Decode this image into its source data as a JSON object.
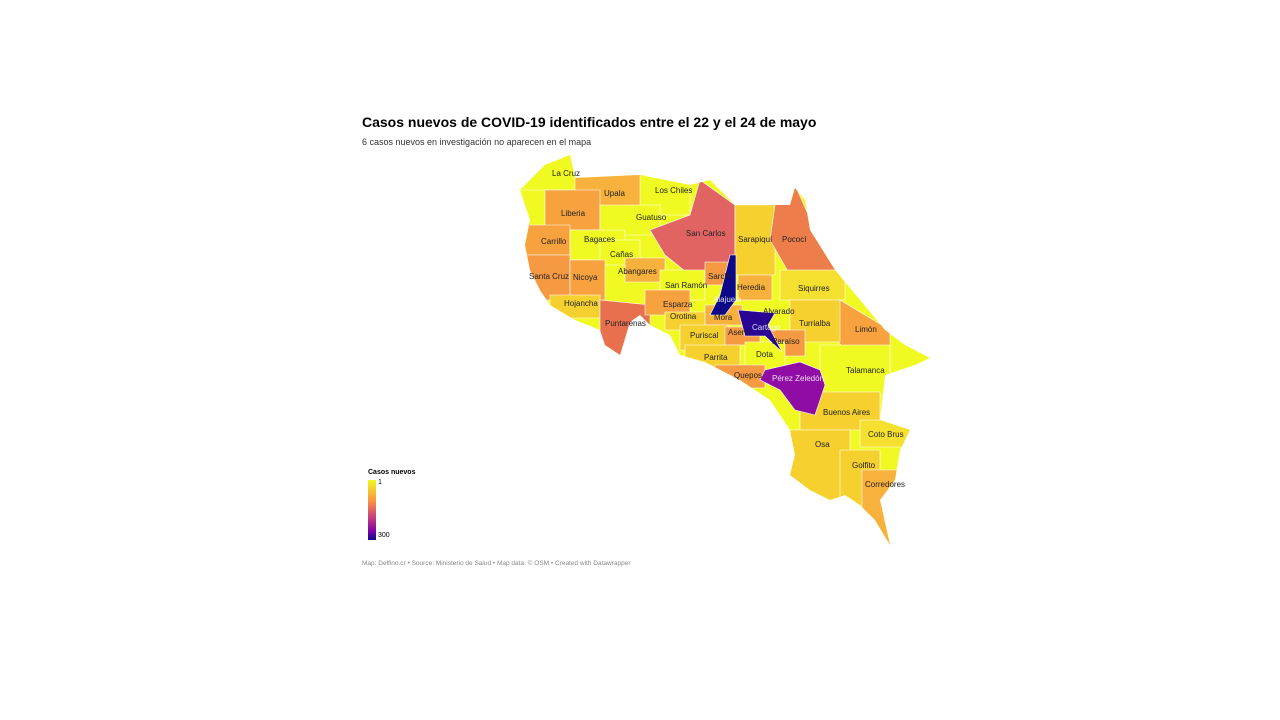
{
  "title": "Casos nuevos de COVID-19 identificados entre el 22 y el 24 de mayo",
  "subtitle": "6 casos nuevos en investigación no aparecen en el mapa",
  "legend": {
    "title": "Casos nuevos",
    "min": "1",
    "max": "300",
    "colors": [
      "#f0f921",
      "#f89540",
      "#cc4778",
      "#7e03a8",
      "#0d0887"
    ]
  },
  "footer": "Map: Delfino.cr • Source: Ministerio de Salud • Map data: © OSM • Created with Datawrapper",
  "regions": [
    {
      "name": "La Cruz",
      "color": "#f0f921"
    },
    {
      "name": "Upala",
      "color": "#f7b13c"
    },
    {
      "name": "Los Chiles",
      "color": "#f0f921"
    },
    {
      "name": "Liberia",
      "color": "#f7a23f"
    },
    {
      "name": "Guatuso",
      "color": "#f0f921"
    },
    {
      "name": "San Carlos",
      "color": "#e16462"
    },
    {
      "name": "Carrillo",
      "color": "#f7a23f"
    },
    {
      "name": "Bagaces",
      "color": "#f0f921"
    },
    {
      "name": "Sarapiquí",
      "color": "#f5d02e"
    },
    {
      "name": "Pococí",
      "color": "#ed7d4a"
    },
    {
      "name": "Cañas",
      "color": "#f0f921"
    },
    {
      "name": "Santa Cruz",
      "color": "#f59a42"
    },
    {
      "name": "Nicoya",
      "color": "#f7a23f"
    },
    {
      "name": "Abangares",
      "color": "#f7b13c"
    },
    {
      "name": "Hojancha",
      "color": "#f5d02e"
    },
    {
      "name": "Puntarenas",
      "color": "#e9704f"
    },
    {
      "name": "San Ramón",
      "color": "#f0f921"
    },
    {
      "name": "Esparza",
      "color": "#f7a23f"
    },
    {
      "name": "Orotina",
      "color": "#f5d02e"
    },
    {
      "name": "Sarchí",
      "color": "#f59a42"
    },
    {
      "name": "Alajuela",
      "color": "#0d0887"
    },
    {
      "name": "Heredia",
      "color": "#f7b13c"
    },
    {
      "name": "Siquirres",
      "color": "#f5e030"
    },
    {
      "name": "Limón",
      "color": "#f7a23f"
    },
    {
      "name": "Turrialba",
      "color": "#f5d02e"
    },
    {
      "name": "Alvarado",
      "color": "#f5d02e"
    },
    {
      "name": "Cartago",
      "color": "#2a0593"
    },
    {
      "name": "Mora",
      "color": "#f7b13c"
    },
    {
      "name": "Puriscal",
      "color": "#f5d02e"
    },
    {
      "name": "Aserrí",
      "color": "#f59a42"
    },
    {
      "name": "Paraíso",
      "color": "#f59a42"
    },
    {
      "name": "Parrita",
      "color": "#f5d02e"
    },
    {
      "name": "Dota",
      "color": "#f0f921"
    },
    {
      "name": "Quepos",
      "color": "#f59a42"
    },
    {
      "name": "Pérez Zeledón",
      "color": "#8f0da4"
    },
    {
      "name": "Talamanca",
      "color": "#f0f921"
    },
    {
      "name": "Buenos Aires",
      "color": "#f5d02e"
    },
    {
      "name": "Coto Brus",
      "color": "#f5e030"
    },
    {
      "name": "Osa",
      "color": "#f5d02e"
    },
    {
      "name": "Golfito",
      "color": "#f5d02e"
    },
    {
      "name": "Corredores",
      "color": "#f7b13c"
    }
  ]
}
